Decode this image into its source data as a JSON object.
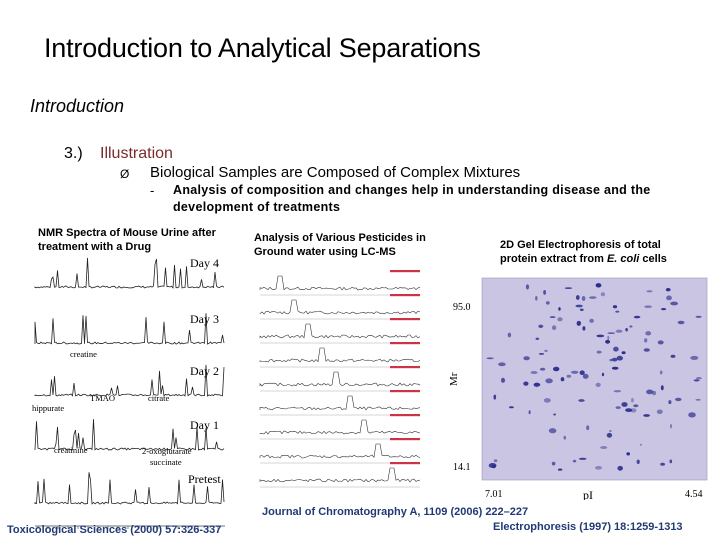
{
  "slide": {
    "title": "Introduction to Analytical Separations",
    "subtitle": "Introduction",
    "item_number": "3.)",
    "item_heading": "Illustration",
    "bullet_symbol": "Ø",
    "bullet_text": "Biological Samples are Composed of Complex Mixtures",
    "sub_dash": "-",
    "sub_bullet_text": "Analysis of composition and changes help in understanding disease and the development of treatments"
  },
  "figures": {
    "nmr": {
      "label": "NMR Spectra of Mouse Urine after treatment with a Drug",
      "traces": [
        "Day 4",
        "Day 3",
        "Day 2",
        "Day 1",
        "Pretest"
      ],
      "annotations": [
        "creatine",
        "TMAO",
        "citrate",
        "hippurate",
        "creatinine",
        "2-oxoglutarate",
        "succinate"
      ],
      "reference": "Toxicological Sciences (2000) 57:326-337"
    },
    "lcms": {
      "label": "Analysis of Various Pesticides in Ground water using LC-MS",
      "reference": "Journal of Chromatography A, 1109 (2006) 222–227"
    },
    "gel": {
      "label_pre": "2D Gel Electrophoresis of total protein extract from ",
      "label_italic": "E. coli",
      "label_post": " cells",
      "y_axis": "Mr",
      "y_top": "95.0",
      "y_bottom": "14.1",
      "x_axis": "pI",
      "x_left": "7.01",
      "x_right": "4.54",
      "reference": "Electrophoresis (1997) 18:1259-1313"
    }
  },
  "colors": {
    "heading": "#7a2a2a",
    "reference": "#1f3a75",
    "gel_background": "#c9c5e3",
    "gel_spot": "#2a2a8a"
  }
}
